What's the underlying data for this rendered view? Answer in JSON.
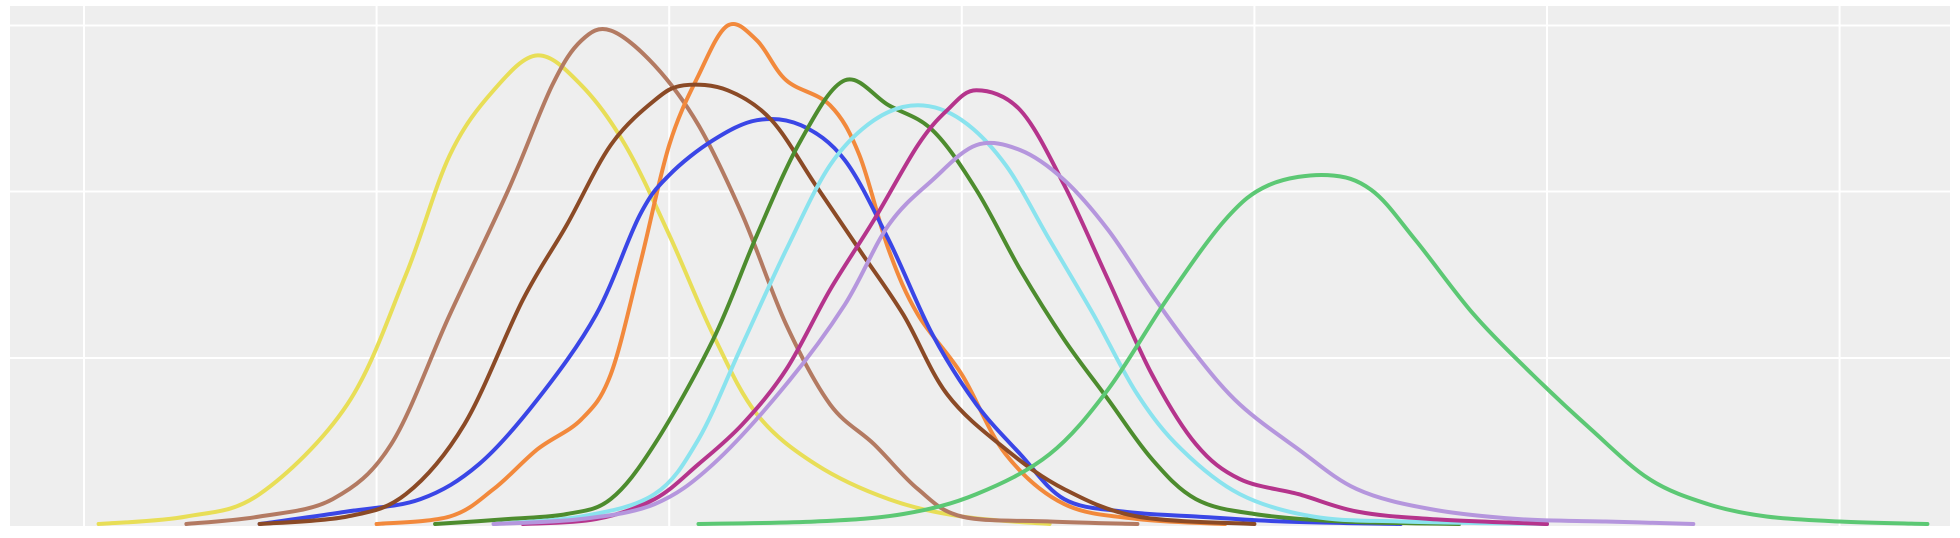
{
  "chart_data": {
    "type": "line",
    "title": "",
    "xlabel": "",
    "ylabel": "",
    "xlim": [
      -0.25,
      6.35
    ],
    "ylim": [
      0,
      1.06
    ],
    "x_grid": [
      0,
      1,
      2,
      3,
      4,
      5,
      6
    ],
    "y_grid": [
      0.333,
      0.667,
      1.0
    ],
    "grid": true,
    "series": [
      {
        "color": "#e8de57",
        "points": [
          [
            0.05,
            0.0
          ],
          [
            0.35,
            0.015
          ],
          [
            0.6,
            0.06
          ],
          [
            0.9,
            0.24
          ],
          [
            1.1,
            0.5
          ],
          [
            1.25,
            0.74
          ],
          [
            1.4,
            0.87
          ],
          [
            1.55,
            0.94
          ],
          [
            1.7,
            0.88
          ],
          [
            1.85,
            0.76
          ],
          [
            2.0,
            0.58
          ],
          [
            2.15,
            0.38
          ],
          [
            2.3,
            0.22
          ],
          [
            2.5,
            0.12
          ],
          [
            2.75,
            0.05
          ],
          [
            3.0,
            0.015
          ],
          [
            3.3,
            0.0
          ]
        ]
      },
      {
        "color": "#b37a62",
        "points": [
          [
            0.35,
            0.0
          ],
          [
            0.6,
            0.015
          ],
          [
            0.85,
            0.05
          ],
          [
            1.05,
            0.16
          ],
          [
            1.25,
            0.42
          ],
          [
            1.45,
            0.67
          ],
          [
            1.6,
            0.88
          ],
          [
            1.7,
            0.97
          ],
          [
            1.8,
            0.99
          ],
          [
            1.95,
            0.92
          ],
          [
            2.1,
            0.8
          ],
          [
            2.25,
            0.62
          ],
          [
            2.4,
            0.4
          ],
          [
            2.55,
            0.24
          ],
          [
            2.7,
            0.16
          ],
          [
            2.85,
            0.07
          ],
          [
            3.0,
            0.015
          ],
          [
            3.3,
            0.005
          ],
          [
            3.6,
            0.0
          ]
        ]
      },
      {
        "color": "#f2893c",
        "points": [
          [
            1.0,
            0.0
          ],
          [
            1.25,
            0.015
          ],
          [
            1.4,
            0.07
          ],
          [
            1.55,
            0.15
          ],
          [
            1.7,
            0.21
          ],
          [
            1.8,
            0.3
          ],
          [
            1.9,
            0.52
          ],
          [
            2.0,
            0.76
          ],
          [
            2.1,
            0.9
          ],
          [
            2.2,
            1.0
          ],
          [
            2.3,
            0.97
          ],
          [
            2.4,
            0.89
          ],
          [
            2.55,
            0.84
          ],
          [
            2.65,
            0.74
          ],
          [
            2.75,
            0.55
          ],
          [
            2.85,
            0.42
          ],
          [
            3.0,
            0.3
          ],
          [
            3.15,
            0.14
          ],
          [
            3.35,
            0.04
          ],
          [
            3.6,
            0.01
          ],
          [
            3.9,
            0.0
          ]
        ]
      },
      {
        "color": "#3a46e6",
        "points": [
          [
            0.6,
            0.0
          ],
          [
            0.9,
            0.025
          ],
          [
            1.15,
            0.05
          ],
          [
            1.35,
            0.12
          ],
          [
            1.55,
            0.25
          ],
          [
            1.75,
            0.42
          ],
          [
            1.9,
            0.62
          ],
          [
            2.0,
            0.7
          ],
          [
            2.15,
            0.77
          ],
          [
            2.3,
            0.81
          ],
          [
            2.45,
            0.8
          ],
          [
            2.6,
            0.73
          ],
          [
            2.75,
            0.57
          ],
          [
            2.9,
            0.38
          ],
          [
            3.05,
            0.24
          ],
          [
            3.2,
            0.14
          ],
          [
            3.35,
            0.05
          ],
          [
            3.55,
            0.025
          ],
          [
            3.8,
            0.015
          ],
          [
            4.1,
            0.005
          ],
          [
            4.5,
            0.0
          ]
        ]
      },
      {
        "color": "#8b4a26",
        "points": [
          [
            0.6,
            0.0
          ],
          [
            0.9,
            0.015
          ],
          [
            1.1,
            0.06
          ],
          [
            1.3,
            0.2
          ],
          [
            1.5,
            0.45
          ],
          [
            1.65,
            0.6
          ],
          [
            1.8,
            0.76
          ],
          [
            1.95,
            0.85
          ],
          [
            2.05,
            0.88
          ],
          [
            2.2,
            0.87
          ],
          [
            2.35,
            0.81
          ],
          [
            2.5,
            0.68
          ],
          [
            2.65,
            0.55
          ],
          [
            2.8,
            0.42
          ],
          [
            2.95,
            0.26
          ],
          [
            3.15,
            0.15
          ],
          [
            3.35,
            0.07
          ],
          [
            3.6,
            0.015
          ],
          [
            4.0,
            0.0
          ]
        ]
      },
      {
        "color": "#4d8c2e",
        "points": [
          [
            1.2,
            0.0
          ],
          [
            1.45,
            0.01
          ],
          [
            1.65,
            0.02
          ],
          [
            1.8,
            0.05
          ],
          [
            1.95,
            0.16
          ],
          [
            2.15,
            0.37
          ],
          [
            2.3,
            0.58
          ],
          [
            2.45,
            0.77
          ],
          [
            2.6,
            0.89
          ],
          [
            2.75,
            0.84
          ],
          [
            2.9,
            0.79
          ],
          [
            3.05,
            0.67
          ],
          [
            3.2,
            0.51
          ],
          [
            3.35,
            0.37
          ],
          [
            3.5,
            0.25
          ],
          [
            3.65,
            0.13
          ],
          [
            3.8,
            0.05
          ],
          [
            4.0,
            0.02
          ],
          [
            4.3,
            0.005
          ],
          [
            4.7,
            0.0
          ]
        ]
      },
      {
        "color": "#8ae3ee",
        "points": [
          [
            1.4,
            0.0
          ],
          [
            1.7,
            0.015
          ],
          [
            1.95,
            0.06
          ],
          [
            2.1,
            0.17
          ],
          [
            2.25,
            0.36
          ],
          [
            2.4,
            0.55
          ],
          [
            2.55,
            0.72
          ],
          [
            2.7,
            0.81
          ],
          [
            2.85,
            0.84
          ],
          [
            3.0,
            0.81
          ],
          [
            3.15,
            0.72
          ],
          [
            3.3,
            0.57
          ],
          [
            3.45,
            0.42
          ],
          [
            3.6,
            0.26
          ],
          [
            3.75,
            0.15
          ],
          [
            3.95,
            0.06
          ],
          [
            4.2,
            0.015
          ],
          [
            4.5,
            0.005
          ],
          [
            5.0,
            0.0
          ]
        ]
      },
      {
        "color": "#b5348c",
        "points": [
          [
            1.5,
            0.0
          ],
          [
            1.75,
            0.01
          ],
          [
            1.95,
            0.05
          ],
          [
            2.1,
            0.12
          ],
          [
            2.25,
            0.2
          ],
          [
            2.4,
            0.31
          ],
          [
            2.55,
            0.47
          ],
          [
            2.7,
            0.61
          ],
          [
            2.85,
            0.76
          ],
          [
            2.95,
            0.83
          ],
          [
            3.05,
            0.87
          ],
          [
            3.2,
            0.83
          ],
          [
            3.35,
            0.68
          ],
          [
            3.5,
            0.49
          ],
          [
            3.65,
            0.3
          ],
          [
            3.8,
            0.16
          ],
          [
            3.95,
            0.09
          ],
          [
            4.15,
            0.06
          ],
          [
            4.35,
            0.025
          ],
          [
            4.6,
            0.01
          ],
          [
            5.0,
            0.0
          ]
        ]
      },
      {
        "color": "#b596dd",
        "points": [
          [
            1.4,
            0.0
          ],
          [
            1.7,
            0.01
          ],
          [
            1.95,
            0.04
          ],
          [
            2.15,
            0.12
          ],
          [
            2.4,
            0.28
          ],
          [
            2.6,
            0.44
          ],
          [
            2.75,
            0.6
          ],
          [
            2.9,
            0.69
          ],
          [
            3.05,
            0.76
          ],
          [
            3.2,
            0.75
          ],
          [
            3.35,
            0.69
          ],
          [
            3.5,
            0.59
          ],
          [
            3.65,
            0.46
          ],
          [
            3.8,
            0.34
          ],
          [
            3.95,
            0.24
          ],
          [
            4.15,
            0.15
          ],
          [
            4.35,
            0.07
          ],
          [
            4.6,
            0.03
          ],
          [
            4.9,
            0.01
          ],
          [
            5.2,
            0.005
          ],
          [
            5.5,
            0.0
          ]
        ]
      },
      {
        "color": "#5cc874",
        "points": [
          [
            2.1,
            0.0
          ],
          [
            2.5,
            0.005
          ],
          [
            2.8,
            0.02
          ],
          [
            3.05,
            0.06
          ],
          [
            3.3,
            0.14
          ],
          [
            3.5,
            0.27
          ],
          [
            3.7,
            0.45
          ],
          [
            3.9,
            0.61
          ],
          [
            4.05,
            0.68
          ],
          [
            4.25,
            0.7
          ],
          [
            4.4,
            0.67
          ],
          [
            4.55,
            0.57
          ],
          [
            4.75,
            0.42
          ],
          [
            4.95,
            0.3
          ],
          [
            5.15,
            0.19
          ],
          [
            5.35,
            0.09
          ],
          [
            5.55,
            0.04
          ],
          [
            5.75,
            0.015
          ],
          [
            6.0,
            0.005
          ],
          [
            6.3,
            0.0
          ]
        ]
      }
    ]
  }
}
